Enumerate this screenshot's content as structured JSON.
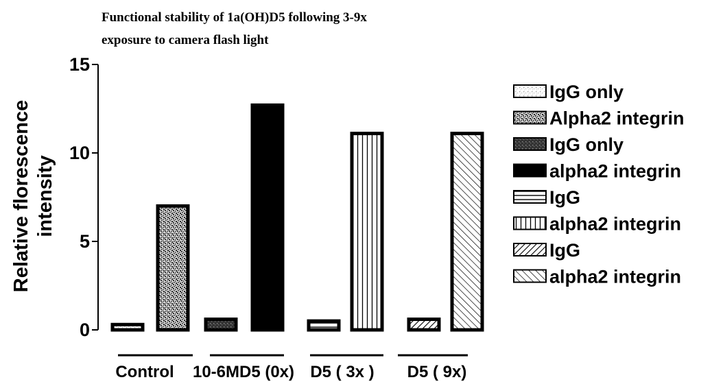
{
  "chart_data": {
    "type": "bar",
    "title": "Functional stability of 1a(OH)D5 following 3-9x exposure to camera flash light",
    "title_lines": [
      "Functional stability of 1a(OH)D5 following 3-9x",
      "exposure to camera flash light"
    ],
    "ylabel": "Relative florescence intensity",
    "ylabel_lines": [
      "Relative florescence",
      "intensity"
    ],
    "xlabel": "",
    "ylim": [
      0,
      15
    ],
    "yticks": [
      0,
      5,
      10,
      15
    ],
    "grid": false,
    "legend_position": "right",
    "groups": [
      "Control",
      "10-6MD5 (0x)",
      "D5 ( 3x )",
      "D5 ( 9x)"
    ],
    "series": [
      {
        "name": "IgG only",
        "group": 0,
        "slot": 0,
        "value": 0.3,
        "pattern": "light-dots"
      },
      {
        "name": "Alpha2 integrin",
        "group": 0,
        "slot": 1,
        "value": 7.0,
        "pattern": "dense-dots"
      },
      {
        "name": "IgG only",
        "group": 1,
        "slot": 0,
        "value": 0.6,
        "pattern": "dark-dots"
      },
      {
        "name": "alpha2 integrin",
        "group": 1,
        "slot": 1,
        "value": 12.7,
        "pattern": "solid-black"
      },
      {
        "name": "IgG",
        "group": 2,
        "slot": 0,
        "value": 0.5,
        "pattern": "horizontal-lines"
      },
      {
        "name": "alpha2 integrin",
        "group": 2,
        "slot": 1,
        "value": 11.1,
        "pattern": "vertical-lines"
      },
      {
        "name": "IgG",
        "group": 3,
        "slot": 0,
        "value": 0.6,
        "pattern": "diagonal-back"
      },
      {
        "name": "alpha2 integrin",
        "group": 3,
        "slot": 1,
        "value": 11.1,
        "pattern": "diagonal-forward"
      }
    ],
    "colors": {
      "ink": "#000000",
      "background": "#ffffff",
      "dot_light": "#9a9a9a",
      "dot_dense": "#3a3a3a"
    }
  }
}
